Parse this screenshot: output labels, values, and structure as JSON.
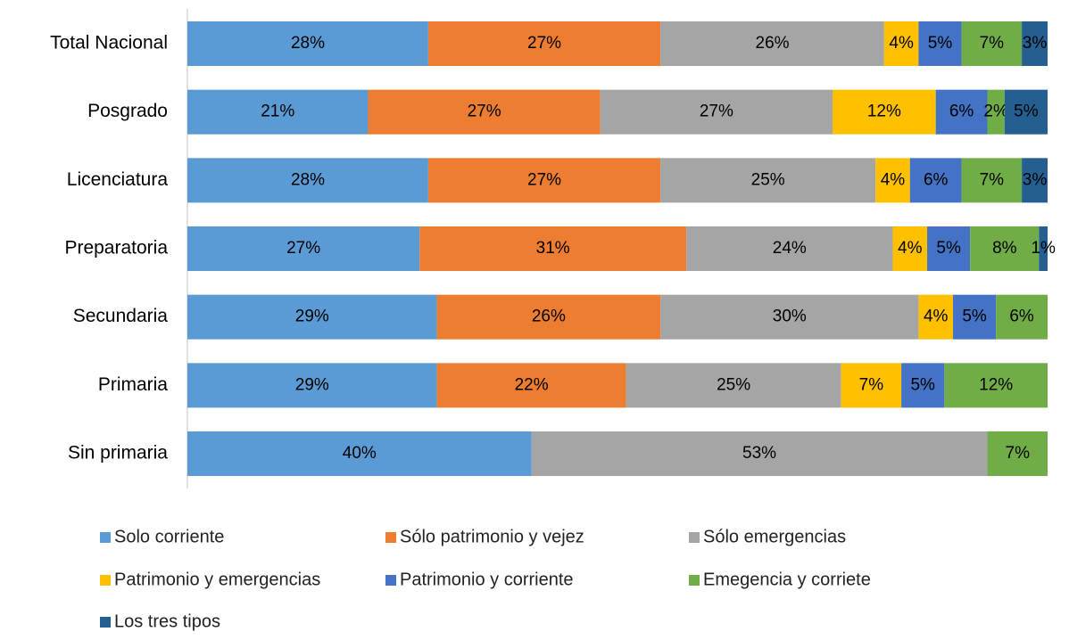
{
  "chart_data": {
    "type": "stacked-bar-horizontal",
    "categories": [
      "Total Nacional",
      "Posgrado",
      "Licenciatura",
      "Preparatoria",
      "Secundaria",
      "Primaria",
      "Sin primaria"
    ],
    "xlim": [
      0,
      100
    ],
    "series": [
      {
        "name": "Solo corriente",
        "color": "#5b9bd5",
        "values": [
          28,
          21,
          28,
          27,
          29,
          29,
          40
        ],
        "value_labels": [
          "28%",
          "21%",
          "28%",
          "27%",
          "29%",
          "29%",
          "40%"
        ]
      },
      {
        "name": "Sólo patrimonio y vejez",
        "color": "#ed7d31",
        "values": [
          27,
          27,
          27,
          31,
          26,
          22,
          null
        ],
        "value_labels": [
          "27%",
          "27%",
          "27%",
          "31%",
          "26%",
          "22%",
          null
        ]
      },
      {
        "name": "Sólo emergencias",
        "color": "#a5a5a5",
        "values": [
          26,
          27,
          25,
          24,
          30,
          25,
          53
        ],
        "value_labels": [
          "26%",
          "27%",
          "25%",
          "24%",
          "30%",
          "25%",
          "53%"
        ]
      },
      {
        "name": "Patrimonio y emergencias",
        "color": "#ffc000",
        "values": [
          4,
          12,
          4,
          4,
          4,
          7,
          null
        ],
        "value_labels": [
          "4%",
          "12%",
          "4%",
          "4%",
          "4%",
          "7%",
          null
        ]
      },
      {
        "name": "Patrimonio y corriente",
        "color": "#4472c4",
        "values": [
          5,
          6,
          6,
          5,
          5,
          5,
          null
        ],
        "value_labels": [
          "5%",
          "6%",
          "6%",
          "5%",
          "5%",
          "5%",
          null
        ]
      },
      {
        "name": "Emegencia y corriete",
        "color": "#70ad47",
        "values": [
          7,
          2,
          7,
          8,
          6,
          12,
          7
        ],
        "value_labels": [
          "7%",
          "2%",
          "7%",
          "8%",
          "6%",
          "12%",
          "7%"
        ]
      },
      {
        "name": "Los tres tipos",
        "color": "#255e91",
        "values": [
          3,
          5,
          3,
          1,
          null,
          null,
          null
        ],
        "value_labels": [
          "3%",
          "5%",
          "3%",
          "1%",
          null,
          null,
          null
        ]
      }
    ]
  }
}
